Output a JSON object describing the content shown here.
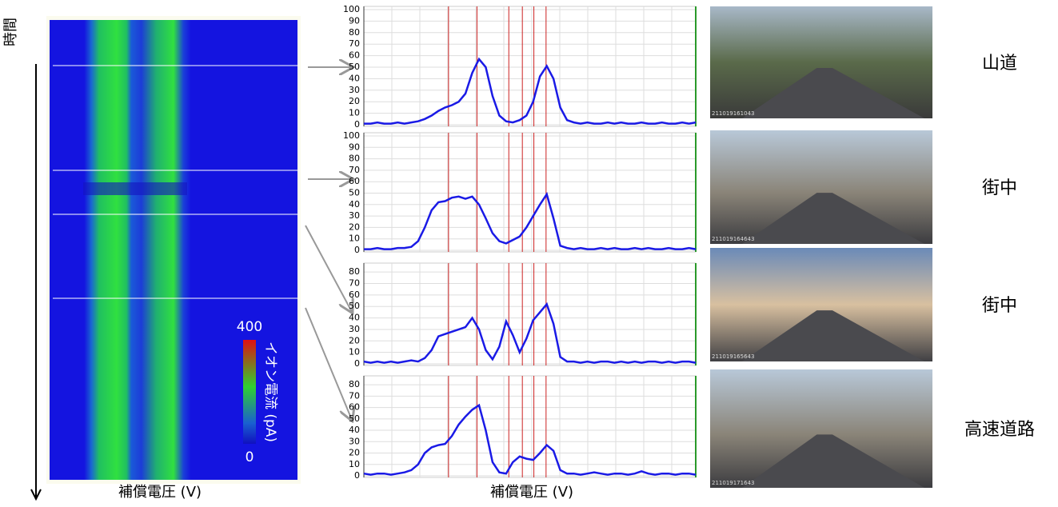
{
  "chart_data": [
    {
      "type": "heatmap",
      "xlabel": "補償電圧 (V)",
      "ylabel": "時間",
      "colorbar": {
        "label": "イオン電流 (pA)",
        "lim": [
          0,
          400
        ],
        "ticks": [
          0,
          400
        ]
      }
    },
    {
      "type": "line",
      "color": "#1a1ae6",
      "vline_color": "#cc2222",
      "grid": true,
      "ylim": [
        0,
        100
      ],
      "yticks": [
        0,
        10,
        20,
        30,
        40,
        50,
        60,
        70,
        80,
        90,
        100
      ],
      "vlines": [
        12.5,
        16.7,
        21.4,
        23.4,
        25.1,
        26.9
      ],
      "values": [
        1,
        1,
        2,
        1,
        1,
        2,
        1,
        2,
        3,
        5,
        8,
        12,
        15,
        17,
        20,
        27,
        45,
        57,
        50,
        25,
        8,
        3,
        2,
        4,
        8,
        20,
        42,
        51,
        40,
        15,
        4,
        2,
        1,
        2,
        1,
        1,
        2,
        1,
        2,
        1,
        1,
        2,
        1,
        1,
        2,
        1,
        1,
        2,
        1,
        2
      ]
    },
    {
      "type": "line",
      "color": "#1a1ae6",
      "vline_color": "#cc2222",
      "grid": true,
      "ylim": [
        0,
        100
      ],
      "yticks": [
        0,
        10,
        20,
        30,
        40,
        50,
        60,
        70,
        80,
        90,
        100
      ],
      "vlines": [
        12.5,
        16.7,
        21.4,
        23.4,
        25.1,
        26.9
      ],
      "values": [
        1,
        1,
        2,
        1,
        1,
        2,
        2,
        3,
        8,
        20,
        35,
        42,
        43,
        46,
        47,
        45,
        47,
        40,
        28,
        15,
        8,
        6,
        9,
        12,
        20,
        30,
        40,
        49,
        28,
        4,
        2,
        1,
        2,
        1,
        1,
        2,
        1,
        2,
        1,
        1,
        2,
        1,
        2,
        1,
        1,
        2,
        1,
        1,
        2,
        1
      ]
    },
    {
      "type": "line",
      "color": "#1a1ae6",
      "vline_color": "#cc2222",
      "grid": true,
      "ylim": [
        0,
        85
      ],
      "yticks": [
        0,
        10,
        20,
        30,
        40,
        50,
        60,
        70,
        80
      ],
      "vlines": [
        12.5,
        16.7,
        21.4,
        23.4,
        25.1,
        26.9
      ],
      "values": [
        2,
        1,
        2,
        1,
        2,
        1,
        2,
        3,
        2,
        5,
        12,
        24,
        26,
        28,
        30,
        32,
        40,
        30,
        12,
        4,
        15,
        37,
        25,
        10,
        22,
        38,
        45,
        52,
        35,
        6,
        2,
        2,
        1,
        2,
        1,
        2,
        2,
        1,
        2,
        1,
        2,
        1,
        2,
        2,
        1,
        2,
        1,
        2,
        2,
        1
      ]
    },
    {
      "type": "line",
      "color": "#1a1ae6",
      "vline_color": "#cc2222",
      "grid": true,
      "xlabel": "補償電圧 (V)",
      "ylim": [
        0,
        85
      ],
      "yticks": [
        0,
        10,
        20,
        30,
        40,
        50,
        60,
        70,
        80
      ],
      "vlines": [
        12.5,
        16.7,
        21.4,
        23.4,
        25.1,
        26.9
      ],
      "values": [
        2,
        1,
        2,
        2,
        1,
        2,
        3,
        5,
        10,
        20,
        25,
        27,
        28,
        35,
        45,
        52,
        58,
        62,
        40,
        12,
        3,
        2,
        12,
        17,
        15,
        14,
        20,
        27,
        22,
        5,
        2,
        2,
        1,
        2,
        3,
        2,
        1,
        2,
        2,
        1,
        2,
        4,
        2,
        1,
        2,
        2,
        1,
        2,
        2,
        1
      ]
    }
  ],
  "photos": [
    {
      "label": "山道",
      "stamp": "211019161043"
    },
    {
      "label": "街中",
      "stamp": "211019164643"
    },
    {
      "label": "街中",
      "stamp": "211019165643"
    },
    {
      "label": "高速道路",
      "stamp": "211019171643"
    }
  ]
}
